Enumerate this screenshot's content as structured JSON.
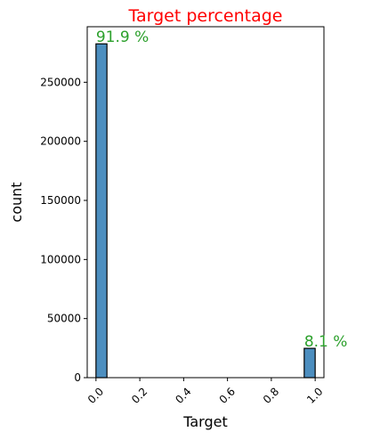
{
  "chart_data": {
    "type": "bar",
    "title": "Target percentage",
    "title_color": "#ff0000",
    "xlabel": "Target",
    "ylabel": "count",
    "x_range": [
      -0.04,
      1.04
    ],
    "ylim": [
      0,
      297000
    ],
    "x_ticks": [
      0.0,
      0.2,
      0.4,
      0.6,
      0.8,
      1.0
    ],
    "x_tick_labels": [
      "0.0",
      "0.2",
      "0.4",
      "0.6",
      "0.8",
      "1.0"
    ],
    "y_ticks": [
      0,
      50000,
      100000,
      150000,
      200000,
      250000
    ],
    "y_tick_labels": [
      "0",
      "50000",
      "100000",
      "150000",
      "200000",
      "250000"
    ],
    "bar_color": "#4c8ebf",
    "bar_edge_color": "#000000",
    "annotation_color": "#2ca02c",
    "bars": [
      {
        "x_start": 0.0,
        "x_end": 0.05,
        "value": 282500,
        "label": "91.9 %"
      },
      {
        "x_start": 0.95,
        "x_end": 1.0,
        "value": 24800,
        "label": "8.1 %"
      }
    ],
    "grid": false,
    "legend": "none"
  }
}
